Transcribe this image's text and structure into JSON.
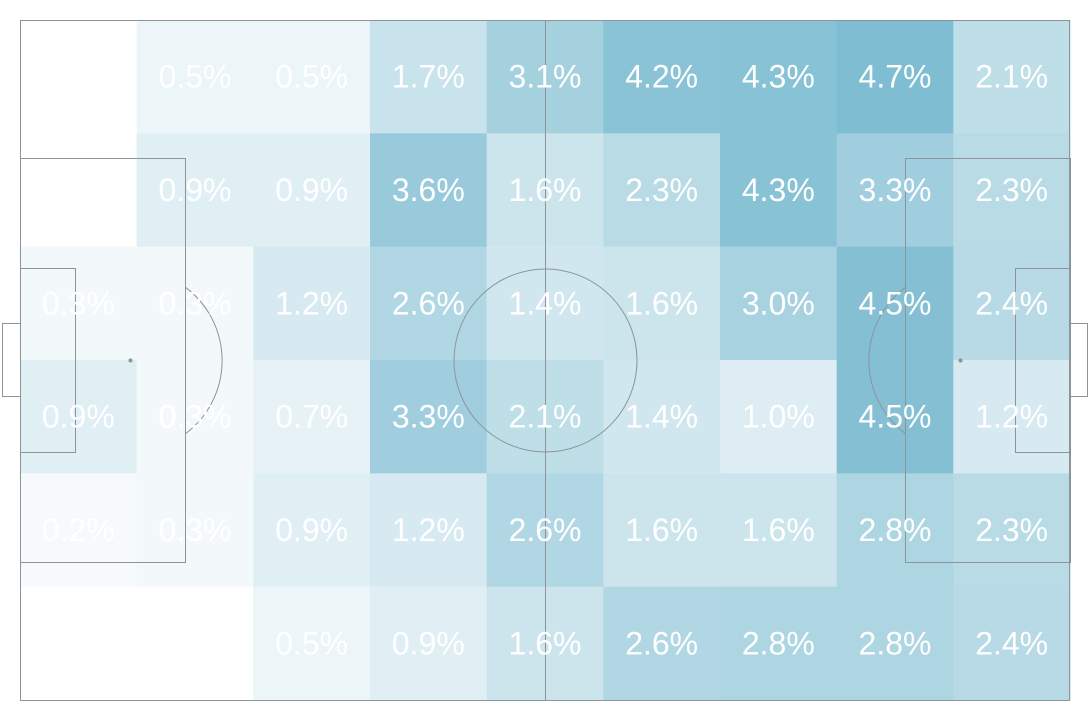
{
  "chart_data": {
    "type": "heatmap",
    "title": "",
    "xlabel": "",
    "ylabel": "",
    "columns": 9,
    "rows": 6,
    "value_format": "percent",
    "color_scale": {
      "low": "#ffffff",
      "high": "#7fbdd2"
    },
    "line_color": "#8c9499",
    "label_color": "#ffffff",
    "values": [
      [
        0.0,
        0.5,
        0.5,
        1.7,
        3.1,
        4.2,
        4.3,
        4.7,
        2.1
      ],
      [
        0.0,
        0.9,
        0.9,
        3.6,
        1.6,
        2.3,
        4.3,
        3.3,
        2.3
      ],
      [
        0.3,
        0.3,
        1.2,
        2.6,
        1.4,
        1.6,
        3.0,
        4.5,
        2.4
      ],
      [
        0.9,
        0.3,
        0.7,
        3.3,
        2.1,
        1.4,
        1.0,
        4.5,
        1.2
      ],
      [
        0.2,
        0.3,
        0.9,
        1.2,
        2.6,
        1.6,
        1.6,
        2.8,
        2.3
      ],
      [
        0.0,
        0.0,
        0.5,
        0.9,
        1.6,
        2.6,
        2.8,
        2.8,
        2.4
      ]
    ],
    "labels": [
      [
        "",
        "0.5%",
        "0.5%",
        "1.7%",
        "3.1%",
        "4.2%",
        "4.3%",
        "4.7%",
        "2.1%"
      ],
      [
        "",
        "0.9%",
        "0.9%",
        "3.6%",
        "1.6%",
        "2.3%",
        "4.3%",
        "3.3%",
        "2.3%"
      ],
      [
        "0.3%",
        "0.3%",
        "1.2%",
        "2.6%",
        "1.4%",
        "1.6%",
        "3.0%",
        "4.5%",
        "2.4%"
      ],
      [
        "0.9%",
        "0.3%",
        "0.7%",
        "3.3%",
        "2.1%",
        "1.4%",
        "1.0%",
        "4.5%",
        "1.2%"
      ],
      [
        "0.2%",
        "0.3%",
        "0.9%",
        "1.2%",
        "2.6%",
        "1.6%",
        "1.6%",
        "2.8%",
        "2.3%"
      ],
      [
        "",
        "",
        "0.5%",
        "0.9%",
        "1.6%",
        "2.6%",
        "2.8%",
        "2.8%",
        "2.4%"
      ]
    ]
  }
}
